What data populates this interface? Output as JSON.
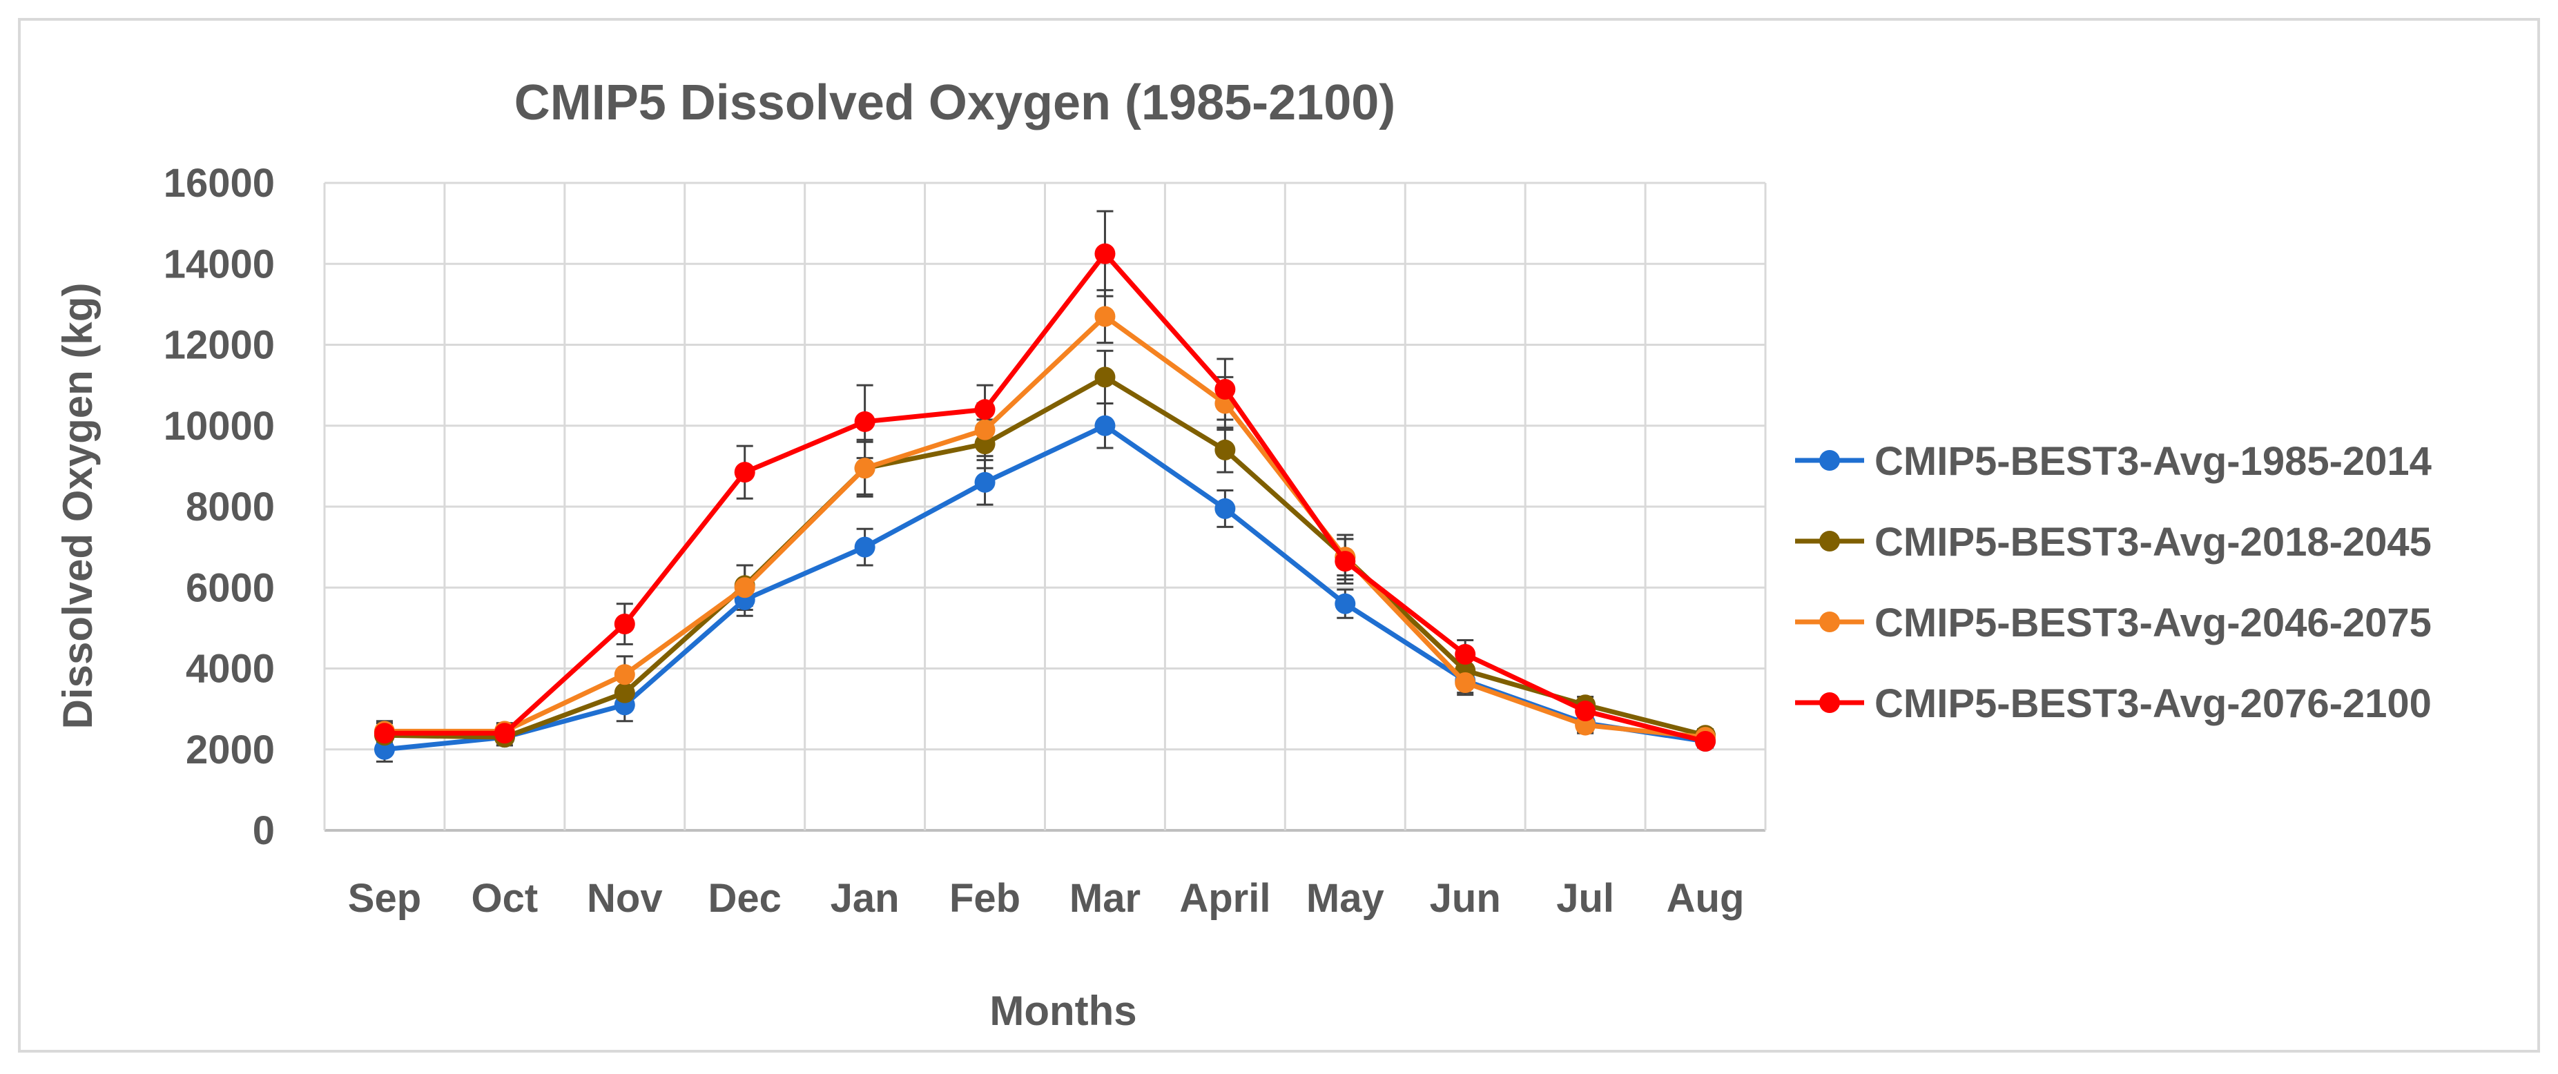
{
  "chart_data": {
    "type": "line",
    "title": "CMIP5 Dissolved Oxygen (1985-2100)",
    "xlabel": "Months",
    "ylabel": "Dissolved Oxygen (kg)",
    "ylim": [
      0,
      16000
    ],
    "yticks": [
      0,
      2000,
      4000,
      6000,
      8000,
      10000,
      12000,
      14000,
      16000
    ],
    "grid": true,
    "error_bars": true,
    "legend_position": "right",
    "categories": [
      "Sep",
      "Oct",
      "Nov",
      "Dec",
      "Jan",
      "Feb",
      "Mar",
      "April",
      "May",
      "Jun",
      "Jul",
      "Aug"
    ],
    "series": [
      {
        "name": "CMIP5-BEST3-Avg-1985-2014",
        "color": "#1f6fd1",
        "values": [
          2000,
          2300,
          3100,
          5700,
          7000,
          8600,
          10000,
          7950,
          5600,
          3700,
          2650,
          2200
        ],
        "errors": [
          300,
          200,
          400,
          400,
          450,
          550,
          550,
          450,
          350,
          300,
          200,
          150
        ]
      },
      {
        "name": "CMIP5-BEST3-Avg-2018-2045",
        "color": "#7f5f00",
        "values": [
          2350,
          2300,
          3400,
          6050,
          8950,
          9550,
          11200,
          9400,
          6750,
          3950,
          3100,
          2350
        ],
        "errors": [
          300,
          200,
          400,
          500,
          700,
          600,
          650,
          550,
          450,
          300,
          200,
          150
        ]
      },
      {
        "name": "CMIP5-BEST3-Avg-2046-2075",
        "color": "#f58220",
        "values": [
          2450,
          2450,
          3850,
          6000,
          8950,
          9900,
          12700,
          10550,
          6750,
          3650,
          2600,
          2300
        ],
        "errors": [
          250,
          200,
          450,
          550,
          650,
          650,
          650,
          650,
          550,
          300,
          200,
          150
        ]
      },
      {
        "name": "CMIP5-BEST3-Avg-2076-2100",
        "color": "#ff0000",
        "values": [
          2400,
          2400,
          5100,
          8850,
          10100,
          10400,
          14250,
          10900,
          6650,
          4350,
          2950,
          2200
        ],
        "errors": [
          250,
          200,
          500,
          650,
          900,
          600,
          1050,
          750,
          550,
          350,
          250,
          150
        ]
      }
    ]
  }
}
